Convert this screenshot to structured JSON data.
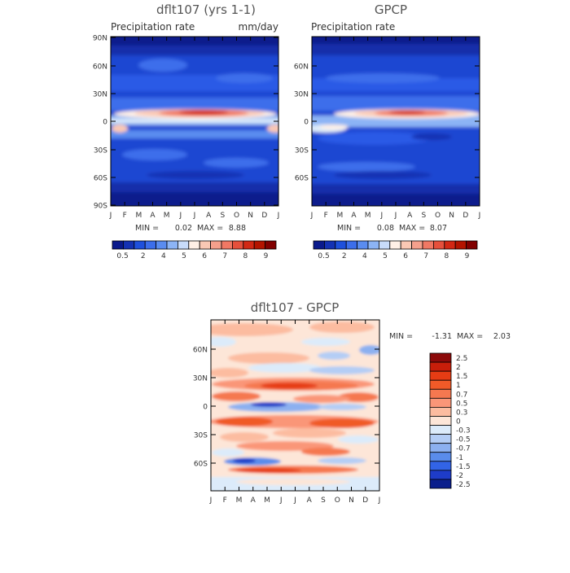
{
  "panels": [
    {
      "title": "dflt107 (yrs 1-1)",
      "subtitle_left": "Precipitation rate",
      "subtitle_right": "mm/day",
      "stats": {
        "min_label": "MIN =",
        "min": "0.02",
        "max_label": "MAX =",
        "max": "8.88"
      }
    },
    {
      "title": "GPCP",
      "subtitle_left": "Precipitation rate",
      "subtitle_right": "",
      "stats": {
        "min_label": "MIN =",
        "min": "0.08",
        "max_label": "MAX =",
        "max": "8.07"
      }
    },
    {
      "title": "dflt107 - GPCP",
      "subtitle_left": "",
      "subtitle_right": "",
      "stats": {
        "min_label": "MIN =",
        "min": "-1.31",
        "max_label": "MAX =",
        "max": "2.03"
      }
    }
  ],
  "month_labels": [
    "J",
    "F",
    "M",
    "A",
    "M",
    "J",
    "J",
    "A",
    "S",
    "O",
    "N",
    "D",
    "J"
  ],
  "lat_labels_top": [
    "90N",
    "60N",
    "30N",
    "0",
    "30S",
    "60S",
    "90S"
  ],
  "lat_labels_top_right": [
    "60N",
    "30N",
    "0",
    "30S",
    "60S"
  ],
  "lat_labels_diff": [
    "60N",
    "30N",
    "0",
    "30S",
    "60S"
  ],
  "colorbar_abs": {
    "labels": [
      "0.5",
      "2",
      "4",
      "5",
      "6",
      "7",
      "8",
      "9"
    ],
    "colors": [
      "#0a1a8c",
      "#1432b4",
      "#1e50dc",
      "#3c6eeb",
      "#5a8cf0",
      "#8cb4f5",
      "#c8dcfa",
      "#fff0e6",
      "#fac8b4",
      "#f5a08c",
      "#f07864",
      "#e6503c",
      "#d22814",
      "#b41400",
      "#820000"
    ]
  },
  "colorbar_diff": {
    "labels": [
      "2.5",
      "2",
      "1.5",
      "1",
      "0.7",
      "0.5",
      "0.3",
      "0",
      "-0.3",
      "-0.5",
      "-0.7",
      "-1",
      "-1.5",
      "-2",
      "-2.5"
    ],
    "colors": [
      "#8c0a0a",
      "#c81e0a",
      "#e63c14",
      "#f05a28",
      "#f57850",
      "#fa9678",
      "#fcbca0",
      "#fde6d8",
      "#dcebfa",
      "#b4cdf5",
      "#8cb0f0",
      "#5a8ceb",
      "#3264e6",
      "#1e3cc8",
      "#0a1e8c"
    ]
  },
  "chart_data": [
    {
      "type": "heatmap",
      "title": "dflt107 (yrs 1-1)",
      "subtitle": "Precipitation rate",
      "units": "mm/day",
      "x": "month of year (Jan to Jan)",
      "y": "latitude (90S to 90N)",
      "xlim": [
        "J",
        "J"
      ],
      "ylim": [
        -90,
        90
      ],
      "min": 0.02,
      "max": 8.88,
      "contour_levels": [
        0.5,
        1,
        2,
        3,
        4,
        4.5,
        5,
        5.5,
        6,
        6.5,
        7,
        7.5,
        8,
        8.5,
        9
      ]
    },
    {
      "type": "heatmap",
      "title": "GPCP",
      "subtitle": "Precipitation rate",
      "x": "month of year (Jan to Jan)",
      "y": "latitude (90S to 90N)",
      "xlim": [
        "J",
        "J"
      ],
      "ylim": [
        -90,
        90
      ],
      "min": 0.08,
      "max": 8.07,
      "contour_levels": [
        0.5,
        1,
        2,
        3,
        4,
        4.5,
        5,
        5.5,
        6,
        6.5,
        7,
        7.5,
        8,
        8.5,
        9
      ]
    },
    {
      "type": "heatmap",
      "title": "dflt107 - GPCP",
      "x": "month of year (Jan to Jan)",
      "y": "latitude",
      "min": -1.31,
      "max": 2.03,
      "contour_levels": [
        -2.5,
        -2,
        -1.5,
        -1,
        -0.7,
        -0.5,
        -0.3,
        0,
        0.3,
        0.5,
        0.7,
        1,
        1.5,
        2,
        2.5
      ]
    }
  ]
}
